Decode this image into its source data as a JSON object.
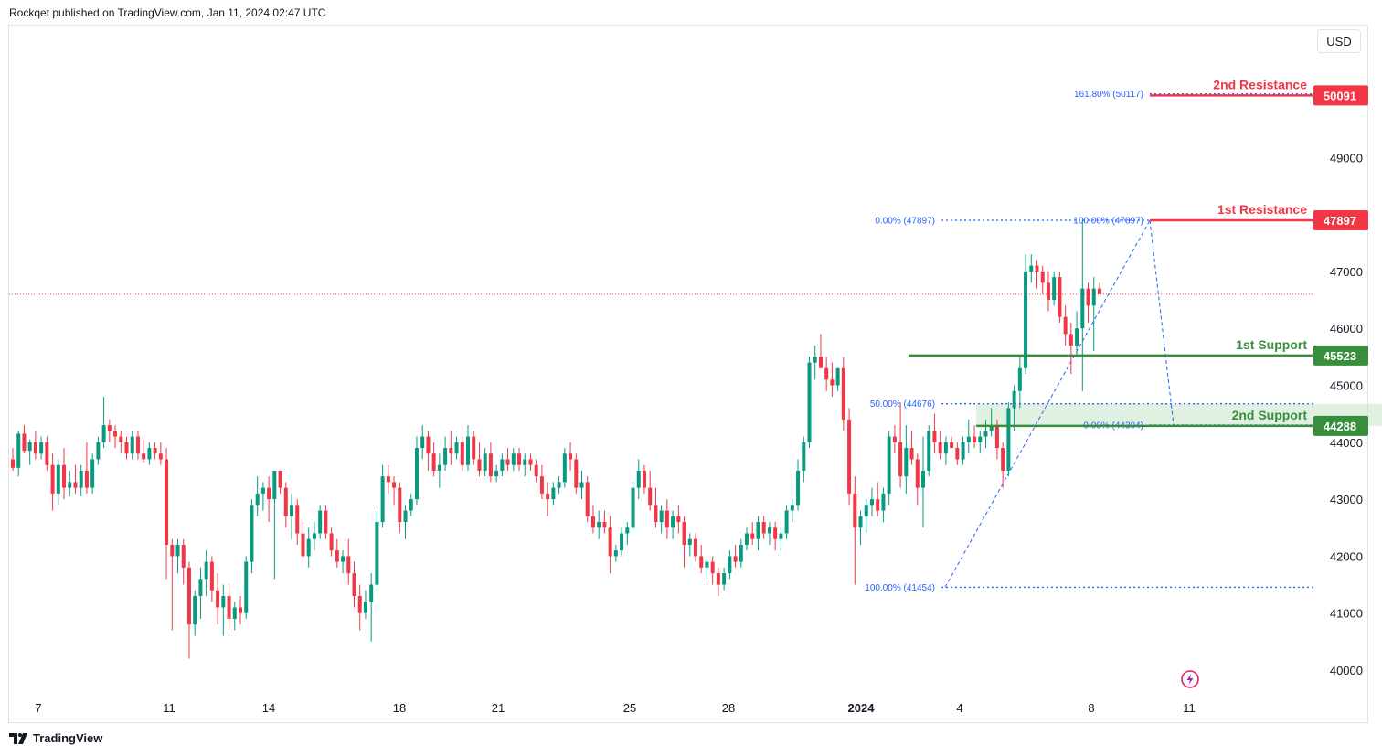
{
  "header": {
    "published_text": "Rockqet published on TradingView.com, Jan 11, 2024 02:47 UTC"
  },
  "toolbar": {
    "currency_label": "USD"
  },
  "footer": {
    "brand_label": "TradingView",
    "brand_icon": "tradingview-logo-icon"
  },
  "colors": {
    "up": "#089981",
    "down": "#f23645",
    "resistance": "#f23645",
    "support": "#388e3c",
    "fib": "#2962ff",
    "zone": "#c8e6c9",
    "price_line": "#f23645",
    "axis_text": "#131722"
  },
  "chart_data": {
    "type": "candlestick",
    "symbol_pair_unit": "USD",
    "x_tick_labels": [
      "7",
      "11",
      "14",
      "18",
      "21",
      "25",
      "28",
      "2024",
      "4",
      "8",
      "11"
    ],
    "y_tick_labels": [
      "40000",
      "41000",
      "42000",
      "43000",
      "44000",
      "45000",
      "46000",
      "47000",
      "49000"
    ],
    "ylim": [
      39700,
      50600
    ],
    "last_price": 46600,
    "levels": [
      {
        "name": "2nd Resistance",
        "value": 50091,
        "price_label": "50091",
        "kind": "resistance"
      },
      {
        "name": "1st Resistance",
        "value": 47897,
        "price_label": "47897",
        "kind": "resistance"
      },
      {
        "name": "1st Support",
        "value": 45523,
        "price_label": "45523",
        "kind": "support"
      },
      {
        "name": "2nd Support",
        "value": 44288,
        "price_label": "44288",
        "kind": "support"
      }
    ],
    "fib_labels": [
      {
        "text": "161.80% (50117)",
        "value": 50117
      },
      {
        "text": "0.00% (47897)",
        "value": 47897
      },
      {
        "text": "100.00% (47897)",
        "value": 47897
      },
      {
        "text": "50.00% (44676)",
        "value": 44676
      },
      {
        "text": "0.00% (44304)",
        "value": 44304
      },
      {
        "text": "100.00% (41454)",
        "value": 41454
      }
    ],
    "support_zone": {
      "low": 44288,
      "high": 44676
    },
    "ohlc": [
      [
        43700,
        43900,
        43500,
        43550
      ],
      [
        43550,
        44200,
        43400,
        44150
      ],
      [
        44150,
        44300,
        43800,
        43850
      ],
      [
        43850,
        44050,
        43600,
        44000
      ],
      [
        44000,
        44200,
        43700,
        43800
      ],
      [
        43800,
        44100,
        43700,
        44000
      ],
      [
        44000,
        44100,
        43500,
        43600
      ],
      [
        43600,
        43800,
        42800,
        43100
      ],
      [
        43100,
        43700,
        42900,
        43600
      ],
      [
        43600,
        43900,
        43000,
        43200
      ],
      [
        43200,
        43500,
        43050,
        43300
      ],
      [
        43300,
        43600,
        43100,
        43200
      ],
      [
        43200,
        43600,
        43050,
        43500
      ],
      [
        43500,
        44000,
        43100,
        43200
      ],
      [
        43200,
        43800,
        43100,
        43700
      ],
      [
        43700,
        44100,
        43600,
        44000
      ],
      [
        44000,
        44800,
        43900,
        44300
      ],
      [
        44300,
        44400,
        44000,
        44200
      ],
      [
        44200,
        44300,
        43900,
        44100
      ],
      [
        44100,
        44200,
        43800,
        44000
      ],
      [
        44000,
        44100,
        43700,
        43800
      ],
      [
        43800,
        44200,
        43700,
        44100
      ],
      [
        44100,
        44200,
        43700,
        43800
      ],
      [
        43800,
        44050,
        43650,
        43700
      ],
      [
        43700,
        44000,
        43600,
        43900
      ],
      [
        43900,
        44000,
        43700,
        43800
      ],
      [
        43800,
        44000,
        43600,
        43700
      ],
      [
        43700,
        43900,
        41600,
        42200
      ],
      [
        42200,
        42300,
        40700,
        42000
      ],
      [
        42000,
        42300,
        41700,
        42200
      ],
      [
        42200,
        42300,
        41500,
        41800
      ],
      [
        41800,
        41900,
        40200,
        40800
      ],
      [
        40800,
        41400,
        40600,
        41300
      ],
      [
        41300,
        41800,
        40900,
        41600
      ],
      [
        41600,
        42100,
        41300,
        41900
      ],
      [
        41900,
        42000,
        41200,
        41400
      ],
      [
        41400,
        41700,
        40800,
        41100
      ],
      [
        41100,
        41500,
        40600,
        41300
      ],
      [
        41300,
        41500,
        40700,
        40900
      ],
      [
        40900,
        41200,
        40700,
        41100
      ],
      [
        41100,
        41300,
        40800,
        41000
      ],
      [
        41000,
        42000,
        40900,
        41900
      ],
      [
        41900,
        43000,
        41700,
        42900
      ],
      [
        42900,
        43400,
        42700,
        43100
      ],
      [
        43100,
        43300,
        42800,
        43200
      ],
      [
        43200,
        43400,
        42600,
        43000
      ],
      [
        43000,
        43400,
        41600,
        43500
      ],
      [
        43500,
        43500,
        43100,
        43200
      ],
      [
        43200,
        43300,
        42500,
        42700
      ],
      [
        42700,
        43100,
        42300,
        42900
      ],
      [
        42900,
        43000,
        42200,
        42400
      ],
      [
        42400,
        42600,
        41900,
        42000
      ],
      [
        42000,
        42500,
        41800,
        42300
      ],
      [
        42300,
        42600,
        42100,
        42400
      ],
      [
        42400,
        42900,
        42300,
        42800
      ],
      [
        42800,
        42900,
        42300,
        42400
      ],
      [
        42400,
        42500,
        42000,
        42100
      ],
      [
        42100,
        42300,
        41800,
        41900
      ],
      [
        41900,
        42100,
        41700,
        42000
      ],
      [
        42000,
        42300,
        41500,
        41700
      ],
      [
        41700,
        41900,
        41100,
        41300
      ],
      [
        41300,
        41500,
        40700,
        41000
      ],
      [
        41000,
        41400,
        40900,
        41200
      ],
      [
        41200,
        41700,
        40500,
        41500
      ],
      [
        41500,
        42800,
        41400,
        42600
      ],
      [
        42600,
        43600,
        42500,
        43400
      ],
      [
        43400,
        43600,
        43100,
        43300
      ],
      [
        43300,
        43400,
        42900,
        43200
      ],
      [
        43200,
        43300,
        42400,
        42600
      ],
      [
        42600,
        42900,
        42300,
        42800
      ],
      [
        42800,
        43100,
        42700,
        43000
      ],
      [
        43000,
        44100,
        42900,
        43900
      ],
      [
        43900,
        44300,
        43700,
        44100
      ],
      [
        44100,
        44200,
        43500,
        43800
      ],
      [
        43800,
        44000,
        43400,
        43500
      ],
      [
        43500,
        43800,
        43200,
        43600
      ],
      [
        43600,
        44100,
        43500,
        43900
      ],
      [
        43900,
        44200,
        43600,
        43800
      ],
      [
        43800,
        44100,
        43700,
        44000
      ],
      [
        44000,
        44100,
        43500,
        43600
      ],
      [
        43600,
        44300,
        43500,
        44100
      ],
      [
        44100,
        44200,
        43600,
        43700
      ],
      [
        43700,
        44000,
        43400,
        43500
      ],
      [
        43500,
        43900,
        43400,
        43800
      ],
      [
        43800,
        44000,
        43300,
        43400
      ],
      [
        43400,
        43600,
        43300,
        43500
      ],
      [
        43500,
        43800,
        43400,
        43700
      ],
      [
        43700,
        43900,
        43500,
        43600
      ],
      [
        43600,
        43900,
        43500,
        43800
      ],
      [
        43800,
        43900,
        43500,
        43600
      ],
      [
        43600,
        43800,
        43400,
        43700
      ],
      [
        43700,
        43800,
        43500,
        43600
      ],
      [
        43600,
        43700,
        43300,
        43400
      ],
      [
        43400,
        43600,
        43000,
        43100
      ],
      [
        43100,
        43300,
        42700,
        43000
      ],
      [
        43000,
        43300,
        42900,
        43200
      ],
      [
        43200,
        43400,
        43100,
        43300
      ],
      [
        43300,
        43900,
        43200,
        43800
      ],
      [
        43800,
        44000,
        43500,
        43700
      ],
      [
        43700,
        43800,
        43100,
        43200
      ],
      [
        43200,
        43500,
        43000,
        43300
      ],
      [
        43300,
        43400,
        42600,
        42700
      ],
      [
        42700,
        42900,
        42400,
        42500
      ],
      [
        42500,
        42800,
        42300,
        42600
      ],
      [
        42600,
        42800,
        42400,
        42500
      ],
      [
        42500,
        42700,
        41700,
        42000
      ],
      [
        42000,
        42200,
        41900,
        42100
      ],
      [
        42100,
        42500,
        42000,
        42400
      ],
      [
        42400,
        42600,
        42200,
        42500
      ],
      [
        42500,
        43300,
        42400,
        43200
      ],
      [
        43200,
        43700,
        43000,
        43500
      ],
      [
        43500,
        43600,
        43100,
        43200
      ],
      [
        43200,
        43500,
        42800,
        42900
      ],
      [
        42900,
        43200,
        42500,
        42600
      ],
      [
        42600,
        42900,
        42400,
        42800
      ],
      [
        42800,
        43000,
        42300,
        42500
      ],
      [
        42500,
        42800,
        42300,
        42700
      ],
      [
        42700,
        42900,
        42400,
        42600
      ],
      [
        42600,
        42700,
        41800,
        42200
      ],
      [
        42200,
        42400,
        42000,
        42300
      ],
      [
        42300,
        42400,
        41900,
        42000
      ],
      [
        42000,
        42200,
        41700,
        41800
      ],
      [
        41800,
        42000,
        41600,
        41900
      ],
      [
        41900,
        42000,
        41500,
        41700
      ],
      [
        41700,
        41800,
        41300,
        41500
      ],
      [
        41500,
        41800,
        41400,
        41700
      ],
      [
        41700,
        42100,
        41600,
        42000
      ],
      [
        42000,
        42200,
        41800,
        41900
      ],
      [
        41900,
        42300,
        41800,
        42200
      ],
      [
        42200,
        42500,
        42100,
        42400
      ],
      [
        42400,
        42600,
        42200,
        42300
      ],
      [
        42300,
        42700,
        42100,
        42600
      ],
      [
        42600,
        42700,
        42300,
        42400
      ],
      [
        42400,
        42600,
        42200,
        42500
      ],
      [
        42500,
        42600,
        42100,
        42300
      ],
      [
        42300,
        42500,
        42100,
        42400
      ],
      [
        42400,
        42900,
        42300,
        42800
      ],
      [
        42800,
        43000,
        42600,
        42900
      ],
      [
        42900,
        43700,
        42800,
        43500
      ],
      [
        43500,
        44100,
        43300,
        44000
      ],
      [
        44000,
        45500,
        43900,
        45400
      ],
      [
        45400,
        45700,
        45100,
        45500
      ],
      [
        45500,
        45900,
        45300,
        45300
      ],
      [
        45300,
        45500,
        44900,
        45100
      ],
      [
        45100,
        45400,
        44800,
        45000
      ],
      [
        45000,
        45300,
        44900,
        45300
      ],
      [
        45300,
        45500,
        44200,
        44400
      ],
      [
        44400,
        44600,
        42900,
        43100
      ],
      [
        43100,
        43400,
        41500,
        42500
      ],
      [
        42500,
        42800,
        42200,
        42700
      ],
      [
        42700,
        43000,
        42400,
        42900
      ],
      [
        42900,
        43200,
        42700,
        43000
      ],
      [
        43000,
        43300,
        42700,
        42800
      ],
      [
        42800,
        43200,
        42600,
        43100
      ],
      [
        43100,
        44200,
        42900,
        44100
      ],
      [
        44100,
        44300,
        43800,
        44000
      ],
      [
        44000,
        44700,
        43200,
        43400
      ],
      [
        43400,
        44300,
        43100,
        43900
      ],
      [
        43900,
        44200,
        43600,
        43700
      ],
      [
        43700,
        43800,
        42900,
        43200
      ],
      [
        43200,
        44100,
        42500,
        43500
      ],
      [
        43500,
        44300,
        43400,
        44200
      ],
      [
        44200,
        44500,
        43800,
        44000
      ],
      [
        44000,
        44200,
        43700,
        43800
      ],
      [
        43800,
        44100,
        43600,
        44000
      ],
      [
        44000,
        44100,
        43900,
        43900
      ],
      [
        43900,
        44000,
        43600,
        43700
      ],
      [
        43700,
        44100,
        43600,
        44000
      ],
      [
        44000,
        44400,
        43800,
        44100
      ],
      [
        44100,
        44300,
        43900,
        44000
      ],
      [
        44000,
        44200,
        43800,
        44100
      ],
      [
        44100,
        44400,
        43900,
        44200
      ],
      [
        44200,
        44600,
        44100,
        44300
      ],
      [
        44300,
        44400,
        43700,
        43900
      ],
      [
        43900,
        44000,
        43200,
        43500
      ],
      [
        43500,
        44700,
        43400,
        44600
      ],
      [
        44600,
        45000,
        44200,
        44900
      ],
      [
        44900,
        45500,
        44600,
        45300
      ],
      [
        45300,
        47300,
        45200,
        47000
      ],
      [
        47000,
        47300,
        46800,
        47100
      ],
      [
        47100,
        47200,
        46700,
        47000
      ],
      [
        47000,
        47100,
        46600,
        46800
      ],
      [
        46800,
        47000,
        46300,
        46500
      ],
      [
        46500,
        47000,
        46400,
        46900
      ],
      [
        46900,
        47000,
        46100,
        46200
      ],
      [
        46200,
        46400,
        45700,
        45900
      ],
      [
        45900,
        46100,
        45200,
        45700
      ],
      [
        45700,
        46300,
        45500,
        46000
      ],
      [
        46000,
        47897,
        44900,
        46700
      ],
      [
        46700,
        46800,
        46100,
        46400
      ],
      [
        46400,
        46900,
        45600,
        46700
      ],
      [
        46700,
        46800,
        46600,
        46600
      ]
    ]
  }
}
